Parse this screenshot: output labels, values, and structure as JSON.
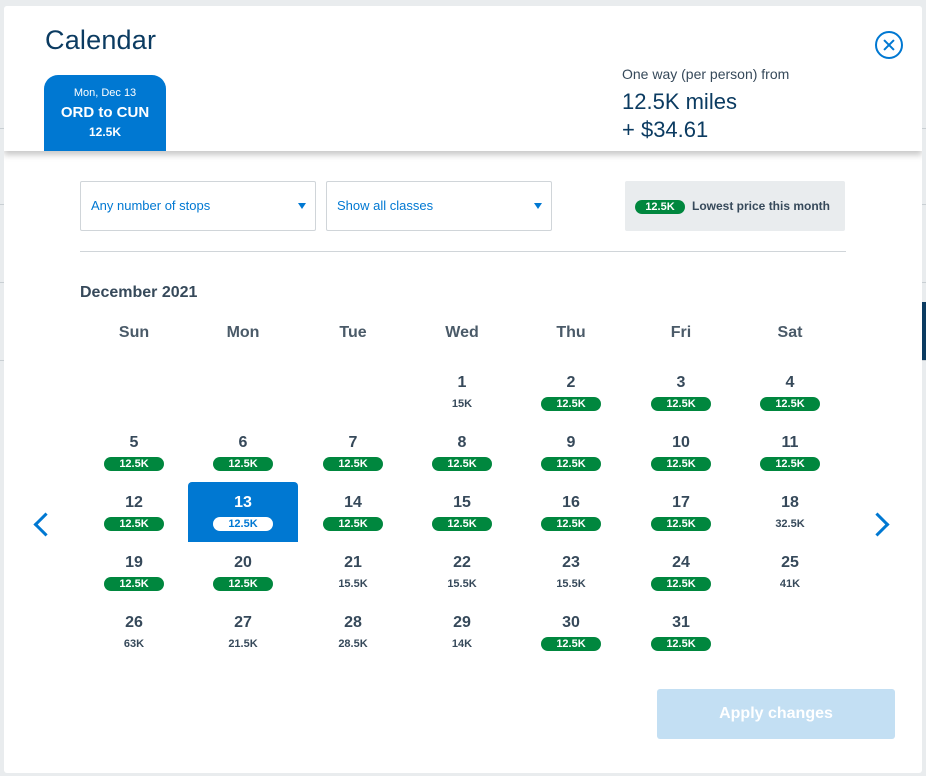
{
  "modal": {
    "title": "Calendar",
    "close_label": "close"
  },
  "trip_tab": {
    "date": "Mon, Dec 13",
    "route": "ORD to CUN",
    "price": "12.5K"
  },
  "fare": {
    "label": "One way (per person) from",
    "miles": "12.5K miles",
    "cash": "+ $34.61"
  },
  "filters": {
    "stops": "Any number of stops",
    "classes": "Show all classes"
  },
  "legend": {
    "pill": "12.5K",
    "text": "Lowest price this month"
  },
  "calendar": {
    "month": "December 2021",
    "weekdays": [
      "Sun",
      "Mon",
      "Tue",
      "Wed",
      "Thu",
      "Fri",
      "Sat"
    ],
    "start_weekday": 3,
    "selected_day": 13,
    "days": [
      {
        "day": "1",
        "price": "15K",
        "lowest": false
      },
      {
        "day": "2",
        "price": "12.5K",
        "lowest": true
      },
      {
        "day": "3",
        "price": "12.5K",
        "lowest": true
      },
      {
        "day": "4",
        "price": "12.5K",
        "lowest": true
      },
      {
        "day": "5",
        "price": "12.5K",
        "lowest": true
      },
      {
        "day": "6",
        "price": "12.5K",
        "lowest": true
      },
      {
        "day": "7",
        "price": "12.5K",
        "lowest": true
      },
      {
        "day": "8",
        "price": "12.5K",
        "lowest": true
      },
      {
        "day": "9",
        "price": "12.5K",
        "lowest": true
      },
      {
        "day": "10",
        "price": "12.5K",
        "lowest": true
      },
      {
        "day": "11",
        "price": "12.5K",
        "lowest": true
      },
      {
        "day": "12",
        "price": "12.5K",
        "lowest": true
      },
      {
        "day": "13",
        "price": "12.5K",
        "lowest": true
      },
      {
        "day": "14",
        "price": "12.5K",
        "lowest": true
      },
      {
        "day": "15",
        "price": "12.5K",
        "lowest": true
      },
      {
        "day": "16",
        "price": "12.5K",
        "lowest": true
      },
      {
        "day": "17",
        "price": "12.5K",
        "lowest": true
      },
      {
        "day": "18",
        "price": "32.5K",
        "lowest": false
      },
      {
        "day": "19",
        "price": "12.5K",
        "lowest": true
      },
      {
        "day": "20",
        "price": "12.5K",
        "lowest": true
      },
      {
        "day": "21",
        "price": "15.5K",
        "lowest": false
      },
      {
        "day": "22",
        "price": "15.5K",
        "lowest": false
      },
      {
        "day": "23",
        "price": "15.5K",
        "lowest": false
      },
      {
        "day": "24",
        "price": "12.5K",
        "lowest": true
      },
      {
        "day": "25",
        "price": "41K",
        "lowest": false
      },
      {
        "day": "26",
        "price": "63K",
        "lowest": false
      },
      {
        "day": "27",
        "price": "21.5K",
        "lowest": false
      },
      {
        "day": "28",
        "price": "28.5K",
        "lowest": false
      },
      {
        "day": "29",
        "price": "14K",
        "lowest": false
      },
      {
        "day": "30",
        "price": "12.5K",
        "lowest": true
      },
      {
        "day": "31",
        "price": "12.5K",
        "lowest": true
      }
    ]
  },
  "actions": {
    "apply_label": "Apply changes"
  },
  "colors": {
    "accent": "#0078d2",
    "lowest_price": "#00873e",
    "title": "#0b3b61",
    "apply_disabled": "#c3dff3"
  }
}
